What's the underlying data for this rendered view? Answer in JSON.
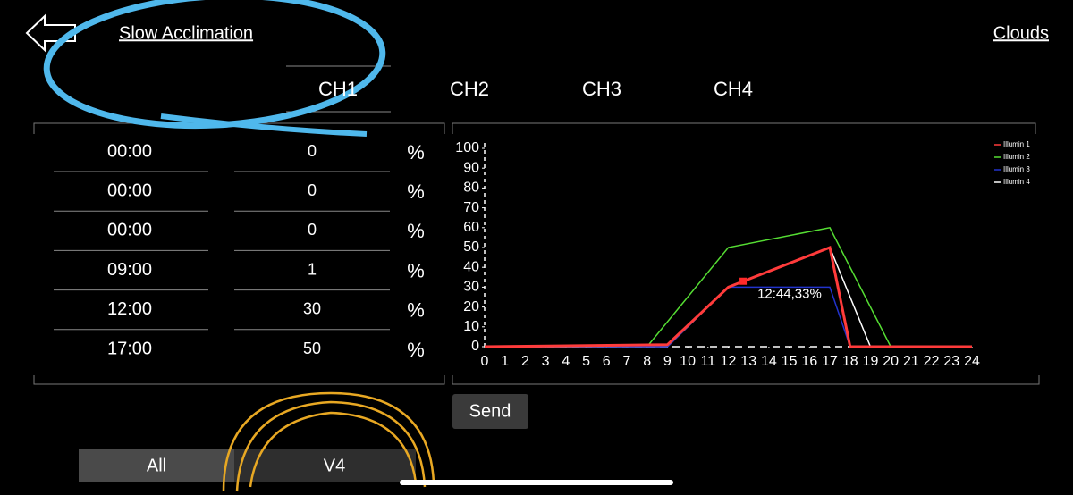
{
  "header": {
    "title": "Slow Acclimation",
    "right_link": "Clouds"
  },
  "channels": [
    "CH1",
    "CH2",
    "CH3",
    "CH4"
  ],
  "schedule": {
    "unit": "%",
    "rows": [
      {
        "time": "00:00",
        "value": 0
      },
      {
        "time": "00:00",
        "value": 0
      },
      {
        "time": "00:00",
        "value": 0
      },
      {
        "time": "09:00",
        "value": 1
      },
      {
        "time": "12:00",
        "value": 30
      },
      {
        "time": "17:00",
        "value": 50
      }
    ]
  },
  "chart_data": {
    "type": "line",
    "xlim": [
      0,
      24
    ],
    "xticks": [
      0,
      1,
      2,
      3,
      4,
      5,
      6,
      7,
      8,
      9,
      10,
      11,
      12,
      13,
      14,
      15,
      16,
      17,
      18,
      19,
      20,
      21,
      22,
      23,
      24
    ],
    "ylim": [
      0,
      100
    ],
    "yticks": [
      0,
      10,
      20,
      30,
      40,
      50,
      60,
      70,
      80,
      90,
      100
    ],
    "legend": "top-right",
    "series": [
      {
        "name": "Illumin 1",
        "color": "#ff3b3b",
        "x": [
          0,
          9,
          12,
          17,
          18,
          24
        ],
        "values": [
          0,
          1,
          30,
          50,
          0,
          0
        ]
      },
      {
        "name": "Illumin 2",
        "color": "#55dd33",
        "x": [
          0,
          8,
          12,
          17,
          20,
          24
        ],
        "values": [
          0,
          0,
          50,
          60,
          0,
          0
        ]
      },
      {
        "name": "Illumin 3",
        "color": "#2233cc",
        "x": [
          0,
          9,
          12,
          17,
          18,
          24
        ],
        "values": [
          0,
          0,
          30,
          30,
          0,
          0
        ]
      },
      {
        "name": "Illumin 4",
        "color": "#ffffff",
        "x": [
          0,
          9,
          12,
          17,
          19,
          24
        ],
        "values": [
          0,
          0,
          30,
          50,
          0,
          0
        ]
      }
    ],
    "annotation": {
      "text": "12:44,33%",
      "x": 12.73,
      "y": 33
    }
  },
  "buttons": {
    "send": "Send",
    "tabs": [
      "All",
      "V4"
    ]
  }
}
